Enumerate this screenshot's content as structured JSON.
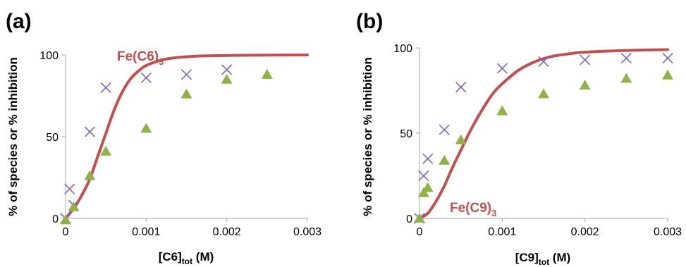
{
  "colors": {
    "curve": "#c0504d",
    "cross": "#7f63b8",
    "triangle": "#8fb24a"
  },
  "chart_data": [
    {
      "panel_label": "(a)",
      "type": "line",
      "xlabel": {
        "main": "[C6]",
        "sub": "tot",
        "unit": " (M)"
      },
      "ylabel": "% of species or % inhibition",
      "xlim": [
        0,
        0.003
      ],
      "ylim": [
        0,
        100
      ],
      "x_ticks": [
        "0",
        "0.001",
        "0.002",
        "0.003"
      ],
      "y_ticks": [
        "0",
        "50",
        "100"
      ],
      "grid": false,
      "legend": "none",
      "curve_label": {
        "main": "Fe(C6)",
        "sub": "3"
      },
      "series": [
        {
          "name": "Fe(C6)3",
          "style": "line",
          "x": [
            0,
            0.0001,
            0.0002,
            0.0003,
            0.0004,
            0.0005,
            0.0006,
            0.0007,
            0.0008,
            0.0009,
            0.001,
            0.0012,
            0.0014,
            0.0016,
            0.0018,
            0.002,
            0.0025,
            0.003
          ],
          "y": [
            0,
            6,
            14,
            24,
            38,
            52,
            66,
            77,
            85,
            90,
            93.5,
            97,
            98.5,
            99.2,
            99.5,
            99.7,
            99.9,
            100
          ]
        },
        {
          "style": "cross",
          "x": [
            0,
            5e-05,
            0.0001,
            0.0003,
            0.0005,
            0.001,
            0.0015,
            0.002
          ],
          "y": [
            0,
            18,
            8,
            53,
            80,
            86,
            88,
            91
          ]
        },
        {
          "style": "triangle",
          "x": [
            0,
            0.0001,
            0.0003,
            0.0005,
            0.001,
            0.0015,
            0.002,
            0.0025
          ],
          "y": [
            -1,
            7,
            26,
            41,
            55,
            76,
            85,
            88
          ]
        }
      ]
    },
    {
      "panel_label": "(b)",
      "type": "line",
      "xlabel": {
        "main": "[C9]",
        "sub": "tot",
        "unit": " (M)"
      },
      "ylabel": "% of species or % inhibition",
      "xlim": [
        0,
        0.003
      ],
      "ylim": [
        0,
        100
      ],
      "x_ticks": [
        "0",
        "0.001",
        "0.002",
        "0.003"
      ],
      "y_ticks": [
        "0",
        "50",
        "100"
      ],
      "grid": false,
      "legend": "none",
      "curve_label": {
        "main": "Fe(C9)",
        "sub": "3"
      },
      "series": [
        {
          "name": "Fe(C9)3",
          "style": "line",
          "x": [
            0,
            0.0001,
            0.0002,
            0.0003,
            0.0004,
            0.0005,
            0.0006,
            0.0007,
            0.0008,
            0.0009,
            0.001,
            0.0012,
            0.0014,
            0.0016,
            0.0018,
            0.002,
            0.0025,
            0.003
          ],
          "y": [
            0,
            3,
            10,
            19,
            30,
            40,
            50,
            59,
            67,
            74,
            79,
            87,
            92,
            95,
            96.5,
            97.5,
            98.5,
            99
          ]
        },
        {
          "style": "cross",
          "x": [
            0,
            5e-05,
            0.0001,
            0.0003,
            0.0005,
            0.001,
            0.0015,
            0.002,
            0.0025,
            0.003
          ],
          "y": [
            0,
            25,
            35,
            52,
            77,
            88,
            92,
            93,
            94,
            94
          ]
        },
        {
          "style": "triangle",
          "x": [
            0,
            5e-05,
            0.0001,
            0.0003,
            0.0005,
            0.001,
            0.0015,
            0.002,
            0.0025,
            0.003
          ],
          "y": [
            0,
            15,
            18,
            34,
            46,
            63,
            73,
            78,
            82,
            84
          ]
        }
      ]
    }
  ]
}
